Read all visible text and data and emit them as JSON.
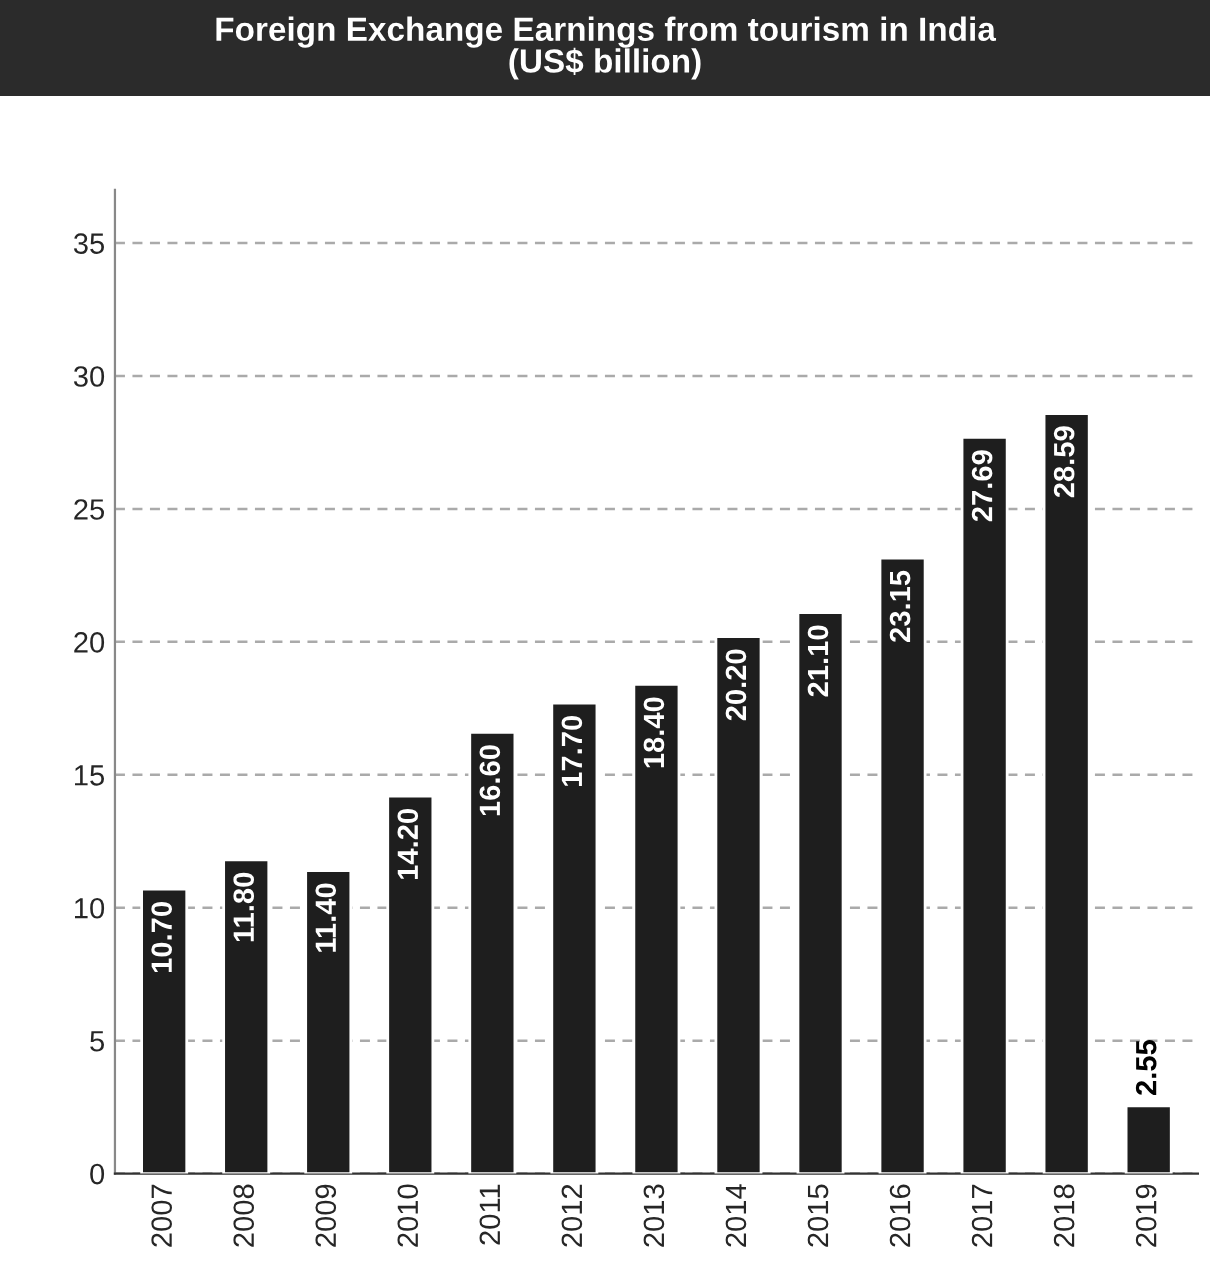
{
  "chart_data": {
    "type": "bar",
    "title": "Foreign Exchange Earnings from tourism in India\n(US$ billion)",
    "categories": [
      "2007",
      "2008",
      "2009",
      "2010",
      "2011",
      "2012",
      "2013",
      "2014",
      "2015",
      "2016",
      "2017",
      "2018",
      "2019"
    ],
    "values": [
      10.7,
      11.8,
      11.4,
      14.2,
      16.6,
      17.7,
      18.4,
      20.2,
      21.1,
      23.15,
      27.69,
      28.59,
      2.55
    ],
    "value_labels": [
      "10.70",
      "11.80",
      "11.40",
      "14.20",
      "16.60",
      "17.70",
      "18.40",
      "20.20",
      "21.10",
      "23.15",
      "27.69",
      "28.59",
      "2.55"
    ],
    "color": "#1e1e1e",
    "ylim": [
      0,
      37
    ],
    "yticks": [
      0,
      5,
      10,
      15,
      20,
      25,
      30,
      35
    ],
    "grid": "y"
  }
}
